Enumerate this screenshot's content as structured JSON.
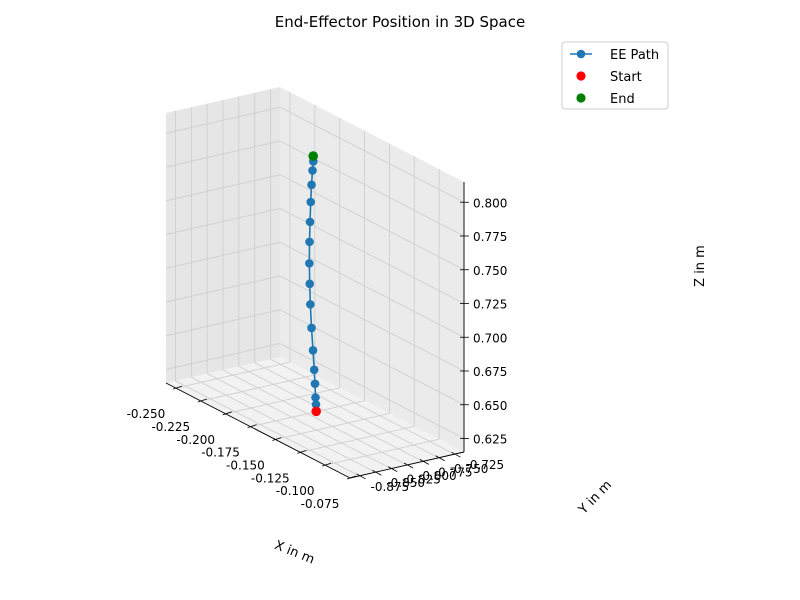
{
  "chart_data": {
    "type": "scatter",
    "title": "End-Effector Position in 3D Space",
    "xlabel": "X in m",
    "ylabel": "Y in m",
    "zlabel": "Z in m",
    "xlim": [
      -0.26,
      -0.075
    ],
    "ylim": [
      -0.89,
      -0.71
    ],
    "zlim": [
      0.615,
      0.815
    ],
    "x_ticks": [
      "-0.250",
      "-0.225",
      "-0.200",
      "-0.175",
      "-0.150",
      "-0.125",
      "-0.100",
      "-0.075"
    ],
    "y_ticks": [
      "-0.725",
      "-0.750",
      "-0.775",
      "-0.800",
      "-0.825",
      "-0.850",
      "-0.875"
    ],
    "z_ticks": [
      "0.625",
      "0.650",
      "0.675",
      "0.700",
      "0.725",
      "0.750",
      "0.775",
      "0.800"
    ],
    "grid": true,
    "legend_position": "top-right",
    "legend": [
      "EE Path",
      "Start",
      "End"
    ],
    "series": [
      {
        "name": "EE Path",
        "color": "#1f77b4",
        "marker": "circle",
        "line": true,
        "points": [
          {
            "x": -0.1665,
            "y": -0.8,
            "z": 0.625
          },
          {
            "x": -0.167,
            "y": -0.8,
            "z": 0.63
          },
          {
            "x": -0.1675,
            "y": -0.8,
            "z": 0.64
          },
          {
            "x": -0.1683,
            "y": -0.8,
            "z": 0.65
          },
          {
            "x": -0.1695,
            "y": -0.8,
            "z": 0.664
          },
          {
            "x": -0.171,
            "y": -0.8,
            "z": 0.68
          },
          {
            "x": -0.1722,
            "y": -0.8,
            "z": 0.697
          },
          {
            "x": -0.1728,
            "y": -0.8,
            "z": 0.712
          },
          {
            "x": -0.1732,
            "y": -0.8,
            "z": 0.727
          },
          {
            "x": -0.173,
            "y": -0.8,
            "z": 0.743
          },
          {
            "x": -0.1725,
            "y": -0.8,
            "z": 0.758
          },
          {
            "x": -0.1718,
            "y": -0.8,
            "z": 0.773
          },
          {
            "x": -0.171,
            "y": -0.8,
            "z": 0.786
          },
          {
            "x": -0.17,
            "y": -0.8,
            "z": 0.797
          },
          {
            "x": -0.1692,
            "y": -0.8,
            "z": 0.804
          }
        ]
      },
      {
        "name": "Start",
        "color": "#ff0000",
        "marker": "circle",
        "line": false,
        "points": [
          {
            "x": -0.1663,
            "y": -0.8,
            "z": 0.62
          }
        ]
      },
      {
        "name": "End",
        "color": "#008000",
        "marker": "circle",
        "line": false,
        "points": [
          {
            "x": -0.1693,
            "y": -0.8,
            "z": 0.808
          }
        ]
      }
    ]
  }
}
